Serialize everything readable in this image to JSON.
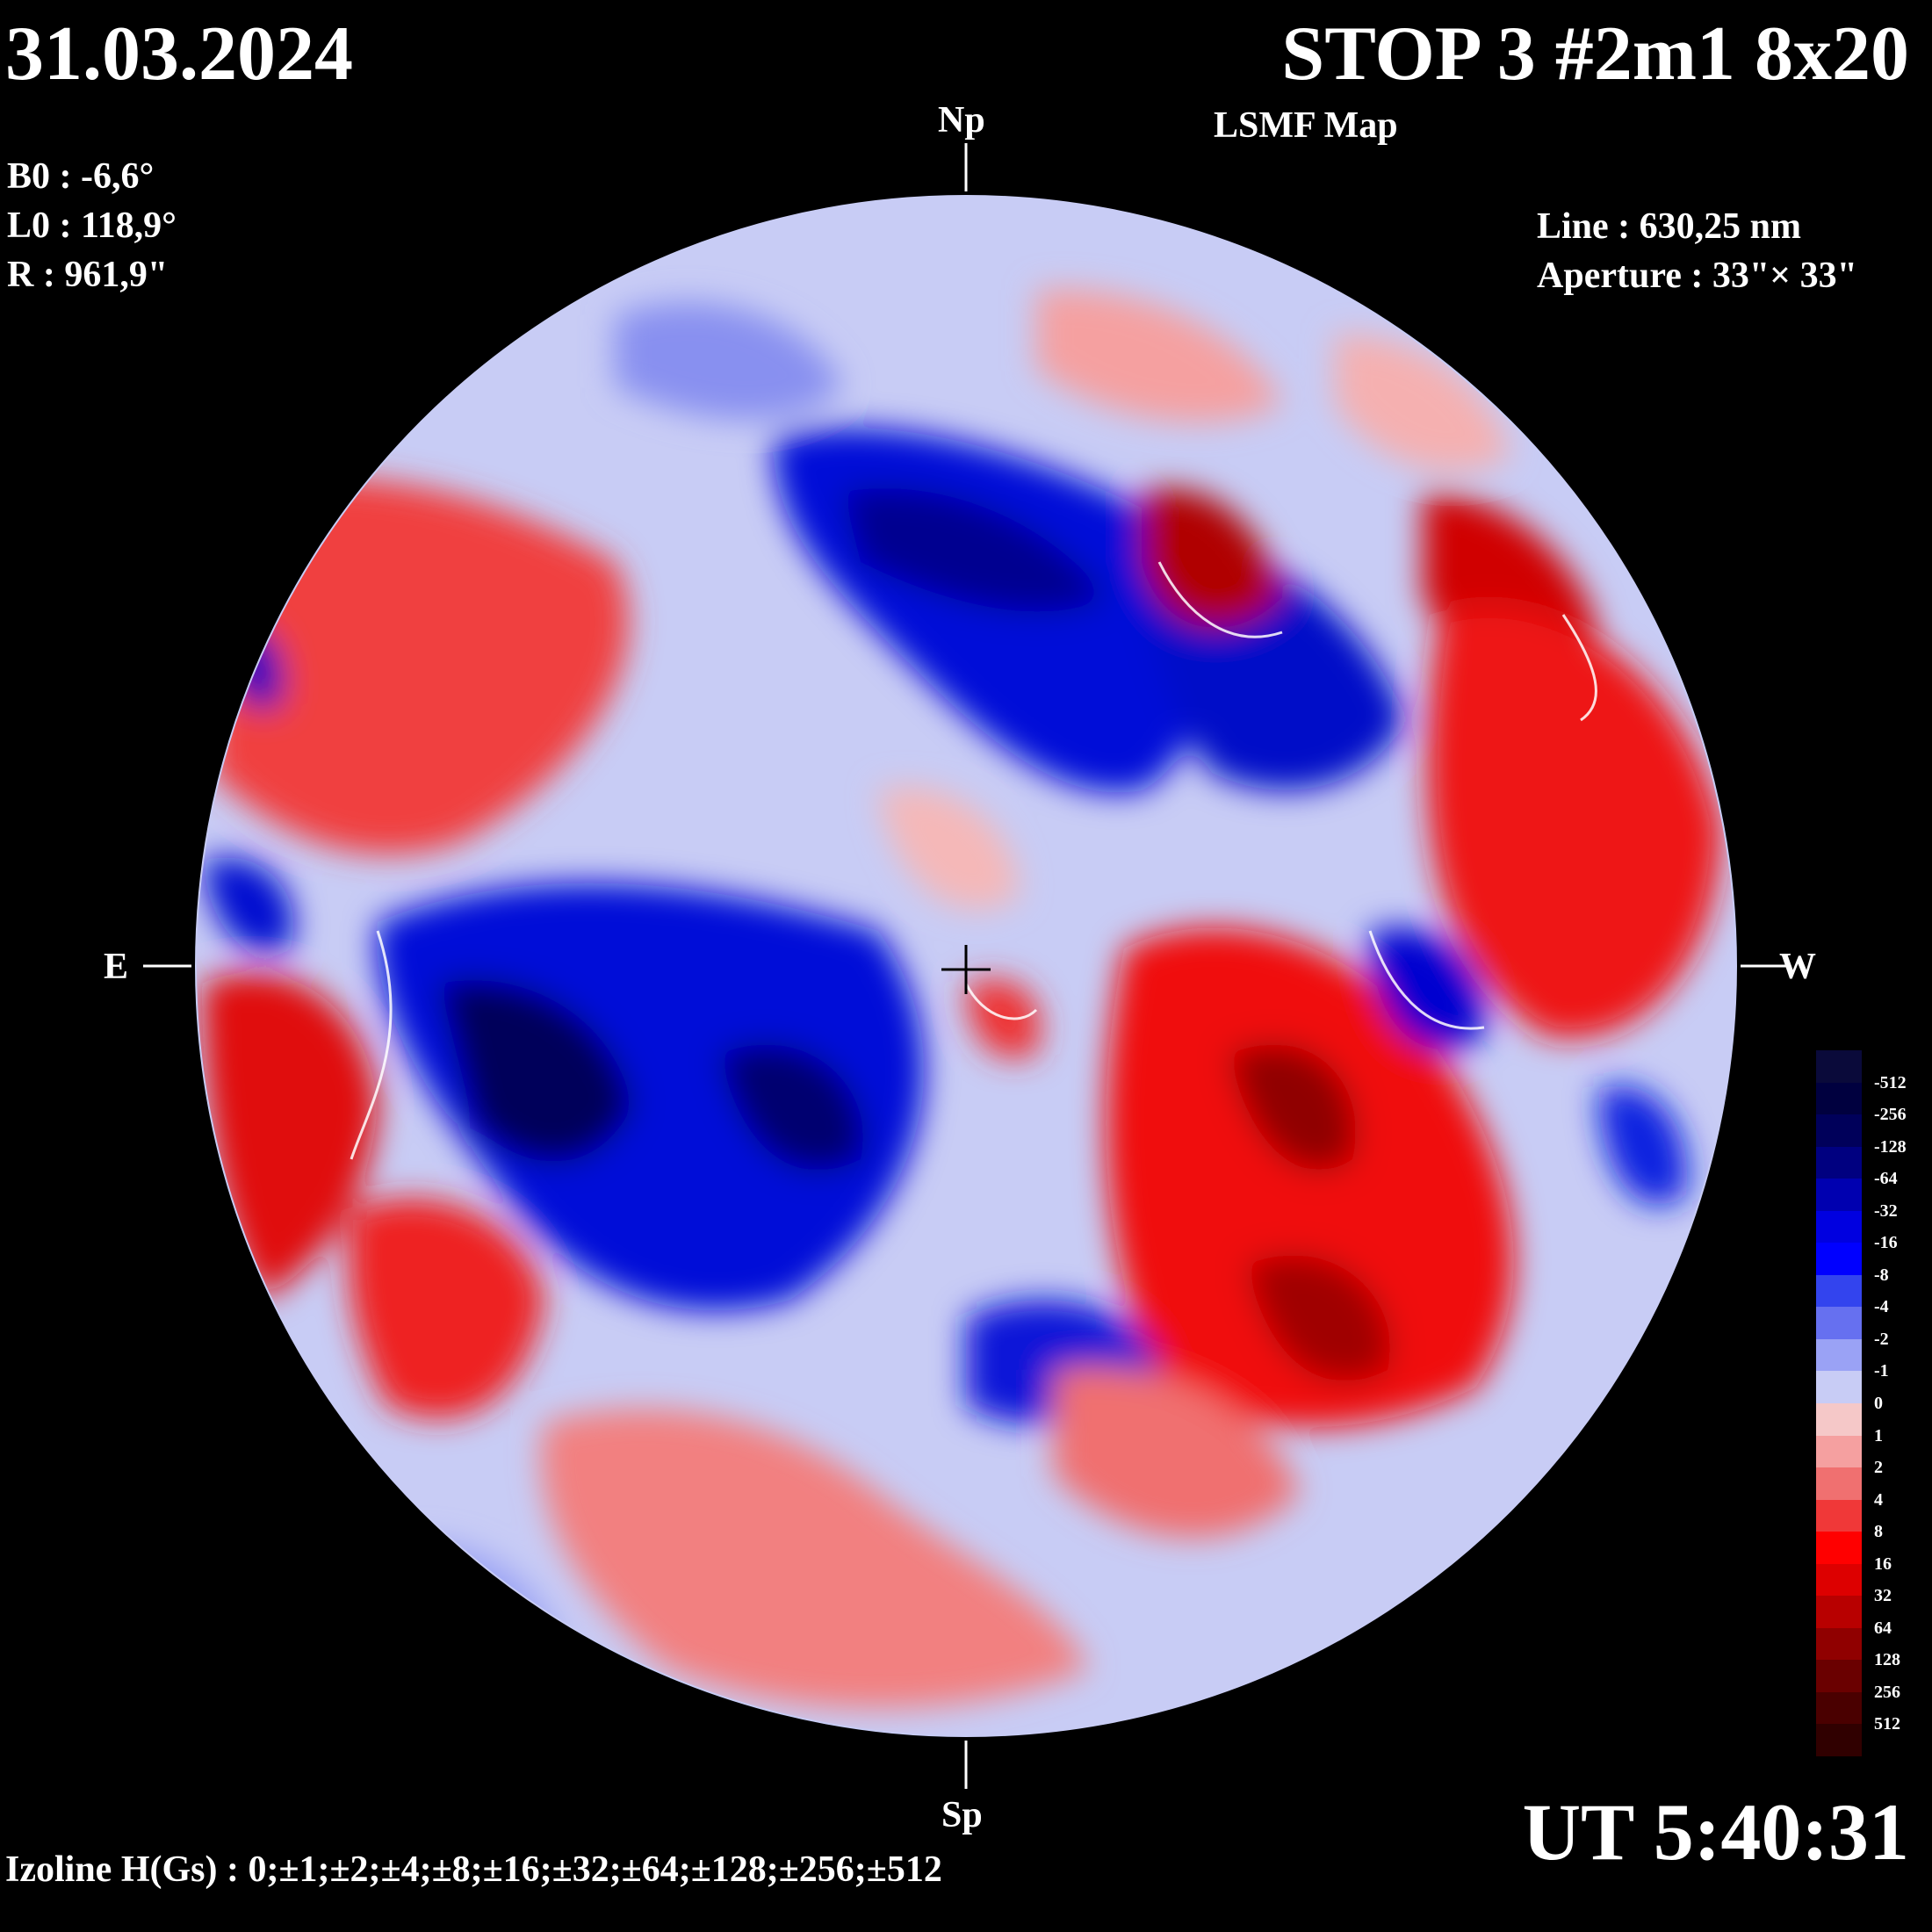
{
  "header": {
    "date": "31.03.2024",
    "title": "STOP 3 #2m1 8x20",
    "subtitle": "LSMF  Map"
  },
  "params": {
    "b0": "B0 : -6,6°",
    "l0": "L0 : 118,9°",
    "r": "R  : 961,9\"",
    "line": "Line :  630,25 nm",
    "aperture": "Aperture : 33\"× 33\""
  },
  "directions": {
    "north": "Np",
    "south": "Sp",
    "east": "E",
    "west": "W"
  },
  "footer": {
    "ut": "UT 5:40:31",
    "izoline": "Izoline H(Gs) : 0;±1;±2;±4;±8;±16;±32;±64;±128;±256;±512"
  },
  "scale": {
    "labels": [
      "-512",
      "-256",
      "-128",
      "-64",
      "-32",
      "-16",
      "-8",
      "-4",
      "-2",
      "-1",
      "0",
      "1",
      "2",
      "4",
      "8",
      "16",
      "32",
      "64",
      "128",
      "256",
      "512"
    ],
    "colors": [
      "#0a0a3a",
      "#00003f",
      "#00005a",
      "#000080",
      "#0000b0",
      "#0000e0",
      "#0000ff",
      "#3344ee",
      "#6670f0",
      "#9aa2f5",
      "#c8ccf5",
      "#f5c8c8",
      "#f5a0a0",
      "#f07070",
      "#f03838",
      "#ff0000",
      "#dd0000",
      "#b80000",
      "#900000",
      "#6a0000",
      "#4a0000",
      "#300000"
    ]
  }
}
